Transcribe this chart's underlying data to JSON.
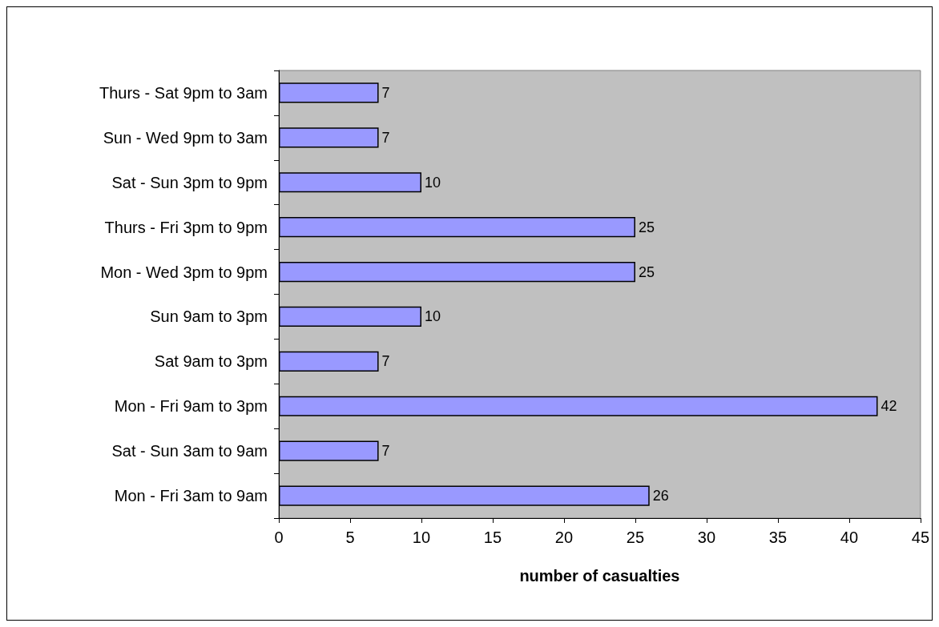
{
  "chart_data": {
    "type": "bar",
    "orientation": "horizontal",
    "xlabel": "number of casualties",
    "categories": [
      "Thurs - Sat 9pm to 3am",
      "Sun - Wed 9pm to 3am",
      "Sat - Sun 3pm to 9pm",
      "Thurs - Fri 3pm to 9pm",
      "Mon - Wed 3pm to 9pm",
      "Sun 9am to 3pm",
      "Sat 9am to 3pm",
      "Mon - Fri 9am to 3pm",
      "Sat - Sun 3am to 9am",
      "Mon - Fri 3am to 9am"
    ],
    "values": [
      7,
      7,
      10,
      25,
      25,
      10,
      7,
      42,
      7,
      26
    ],
    "color": "#9999ff",
    "xlim": [
      0,
      45
    ],
    "xticks": [
      0,
      5,
      10,
      15,
      20,
      25,
      30,
      35,
      40,
      45
    ],
    "data_labels": true,
    "grid": false
  }
}
